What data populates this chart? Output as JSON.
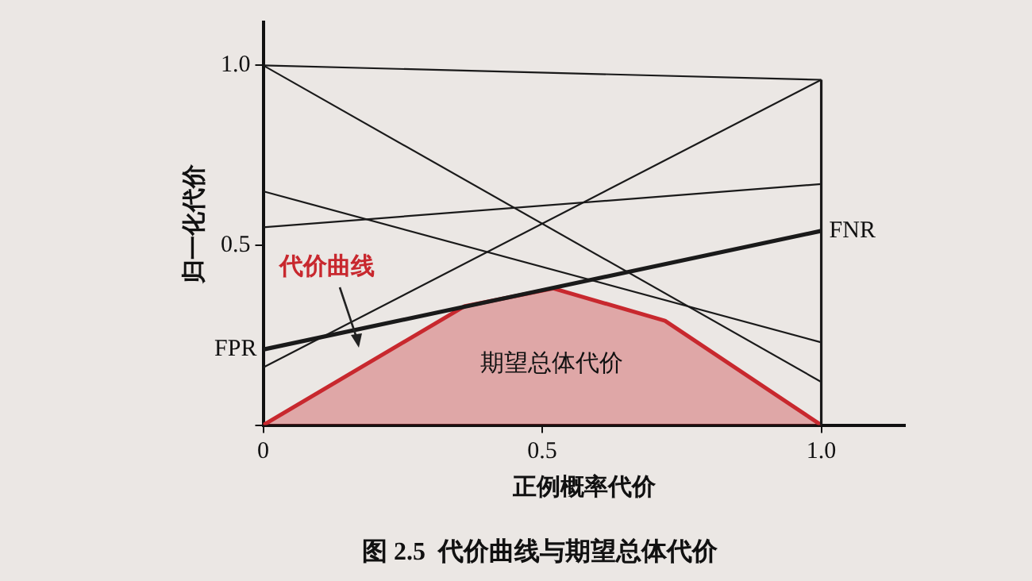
{
  "chart_data": {
    "type": "line",
    "title": "图 2.5  代价曲线与期望总体代价",
    "xlabel": "正例概率代价",
    "ylabel": "归一化代价",
    "xlim": [
      0,
      1.15
    ],
    "ylim": [
      0,
      1.12
    ],
    "xticks": [
      0,
      0.5,
      {
        "value": 1,
        "label": "1.0"
      }
    ],
    "yticks": [
      {
        "value": 0,
        "label": null
      },
      0.5,
      {
        "value": 1,
        "label": "1.0"
      }
    ],
    "grid": false,
    "legend": false,
    "marker": "none",
    "line_style": "solid",
    "ref_lines": [
      {
        "axis": "x",
        "value": 1,
        "color": "#1a1a1a"
      }
    ],
    "series": [
      {
        "type": "area",
        "color": "#c8282e",
        "x": [
          0,
          0.36,
          0.52,
          0.72,
          1
        ],
        "values": [
          0,
          0.33,
          0.38,
          0.29,
          0
        ]
      },
      {
        "color": "#1a1a1a",
        "x": [
          0,
          1
        ],
        "values": [
          1.0,
          0.96
        ]
      },
      {
        "color": "#1a1a1a",
        "x": [
          0,
          1
        ],
        "values": [
          1.0,
          0.12
        ]
      },
      {
        "color": "#1a1a1a",
        "x": [
          0,
          1
        ],
        "values": [
          0.65,
          0.23
        ]
      },
      {
        "color": "#1a1a1a",
        "x": [
          0,
          1
        ],
        "values": [
          0.55,
          0.67
        ]
      },
      {
        "color": "#1a1a1a",
        "x": [
          0,
          1
        ],
        "values": [
          0.16,
          0.96
        ]
      },
      {
        "color": "#1a1a1a",
        "x": [
          0,
          1
        ],
        "values": [
          0.21,
          0.54
        ]
      }
    ],
    "annotations": [
      "代价曲线",
      {
        "text": "FPR",
        "x": 0,
        "y": 0.21
      },
      {
        "text": "FNR",
        "x": 1,
        "y": 0.54
      },
      "期望总体代价"
    ]
  }
}
